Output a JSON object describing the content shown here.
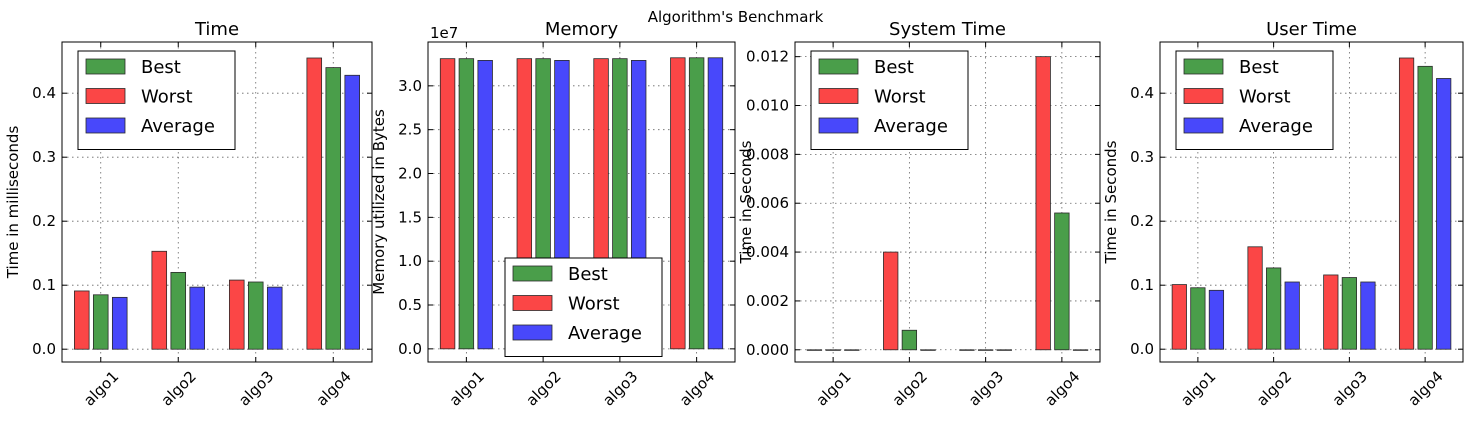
{
  "suptitle": "Algorithm's Benchmark",
  "colors": {
    "Best": "#4a9e4a",
    "Worst": "#fb4646",
    "Average": "#4848fb"
  },
  "chart_data": [
    {
      "type": "bar",
      "title": "Time",
      "xlabel": "",
      "ylabel": "Time in milliseconds",
      "categories": [
        "algo1",
        "algo2",
        "algo3",
        "algo4"
      ],
      "series_order": [
        "Worst",
        "Best",
        "Average"
      ],
      "series": [
        {
          "name": "Best",
          "values": [
            0.085,
            0.12,
            0.105,
            0.44
          ]
        },
        {
          "name": "Worst",
          "values": [
            0.091,
            0.153,
            0.108,
            0.455
          ]
        },
        {
          "name": "Average",
          "values": [
            0.081,
            0.097,
            0.097,
            0.428
          ]
        }
      ],
      "ylim": [
        -0.02,
        0.48
      ],
      "yticks": [
        "0.0",
        "0.1",
        "0.2",
        "0.3",
        "0.4"
      ],
      "ytick_values": [
        0,
        0.1,
        0.2,
        0.3,
        0.4
      ],
      "y_multiplier": "",
      "grid": true,
      "legend_loc": "upper-left"
    },
    {
      "type": "bar",
      "title": "Memory",
      "xlabel": "",
      "ylabel": "Memory utilized in Bytes",
      "categories": [
        "algo1",
        "algo2",
        "algo3",
        "algo4"
      ],
      "series_order": [
        "Worst",
        "Best",
        "Average"
      ],
      "series": [
        {
          "name": "Best",
          "values": [
            33100000,
            33100000,
            33100000,
            33200000
          ]
        },
        {
          "name": "Worst",
          "values": [
            33100000,
            33100000,
            33100000,
            33200000
          ]
        },
        {
          "name": "Average",
          "values": [
            32900000,
            32900000,
            32900000,
            33200000
          ]
        }
      ],
      "ylim": [
        -1500000,
        35000000
      ],
      "yticks": [
        "0.0",
        "0.5",
        "1.0",
        "1.5",
        "2.0",
        "2.5",
        "3.0"
      ],
      "ytick_values": [
        0,
        5000000,
        10000000,
        15000000,
        20000000,
        25000000,
        30000000
      ],
      "y_multiplier": "1e7",
      "grid": true,
      "legend_loc": "lower-center"
    },
    {
      "type": "bar",
      "title": "System Time",
      "xlabel": "",
      "ylabel": "Time in Seconds",
      "categories": [
        "algo1",
        "algo2",
        "algo3",
        "algo4"
      ],
      "series_order": [
        "Worst",
        "Best",
        "Average"
      ],
      "series": [
        {
          "name": "Best",
          "values": [
            0,
            0.0008,
            0,
            0.0056
          ]
        },
        {
          "name": "Worst",
          "values": [
            0,
            0.004,
            0,
            0.012
          ]
        },
        {
          "name": "Average",
          "values": [
            0,
            0,
            0,
            0
          ]
        }
      ],
      "ylim": [
        -0.0005,
        0.0126
      ],
      "yticks": [
        "0.000",
        "0.002",
        "0.004",
        "0.006",
        "0.008",
        "0.010",
        "0.012"
      ],
      "ytick_values": [
        0,
        0.002,
        0.004,
        0.006,
        0.008,
        0.01,
        0.012
      ],
      "y_multiplier": "",
      "grid": true,
      "legend_loc": "upper-left"
    },
    {
      "type": "bar",
      "title": "User Time",
      "xlabel": "",
      "ylabel": "Time in Seconds",
      "categories": [
        "algo1",
        "algo2",
        "algo3",
        "algo4"
      ],
      "series_order": [
        "Worst",
        "Best",
        "Average"
      ],
      "series": [
        {
          "name": "Best",
          "values": [
            0.096,
            0.127,
            0.112,
            0.442
          ]
        },
        {
          "name": "Worst",
          "values": [
            0.101,
            0.16,
            0.116,
            0.455
          ]
        },
        {
          "name": "Average",
          "values": [
            0.092,
            0.105,
            0.105,
            0.423
          ]
        }
      ],
      "ylim": [
        -0.02,
        0.48
      ],
      "yticks": [
        "0.0",
        "0.1",
        "0.2",
        "0.3",
        "0.4"
      ],
      "ytick_values": [
        0,
        0.1,
        0.2,
        0.3,
        0.4
      ],
      "y_multiplier": "",
      "grid": true,
      "legend_loc": "upper-left"
    }
  ]
}
